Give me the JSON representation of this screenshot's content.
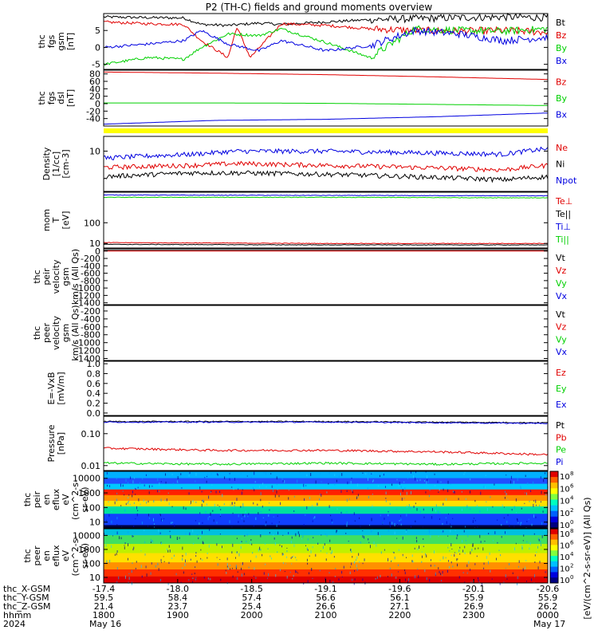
{
  "title": "P2 (TH-C) fields and ground moments overview",
  "time_axis": {
    "rows": [
      {
        "label": "thc_X-GSM",
        "values": [
          "-17.4",
          "-18.0",
          "-18.5",
          "-19.1",
          "-19.6",
          "-20.1",
          "-20.6"
        ]
      },
      {
        "label": "thc_Y-GSM",
        "values": [
          "59.5",
          "58.4",
          "57.4",
          "56.6",
          "56.1",
          "55.9",
          "55.9"
        ]
      },
      {
        "label": "thc_Z-GSM",
        "values": [
          "21.4",
          "23.7",
          "25.4",
          "26.6",
          "27.1",
          "26.9",
          "26.2"
        ]
      },
      {
        "label": "hhmm",
        "values": [
          "1800",
          "1900",
          "2000",
          "2100",
          "2200",
          "2300",
          "0000"
        ]
      }
    ],
    "date_row": {
      "label": "2024",
      "start": "May 16",
      "end": "May 17"
    }
  },
  "colorbar": {
    "label": "[eV/(cm^2-s-sr-eV)] (All Qs)",
    "ticks": [
      "10",
      "10",
      "10",
      "10",
      "10"
    ],
    "tick_exps": [
      "8",
      "6",
      "4",
      "2",
      "0"
    ]
  },
  "colors": {
    "black": "#000000",
    "red": "#e00000",
    "green": "#00d000",
    "blue": "#0000e0",
    "yellow": "#ffff00"
  },
  "chart_data": [
    {
      "type": "line",
      "panel": "fgs-gsm",
      "ylabel_lines": [
        "thc",
        "fgs",
        "gsm",
        "[nT]"
      ],
      "ytick_labels": [
        "5",
        "0",
        "-5"
      ],
      "ylim": [
        -6.5,
        10
      ],
      "legend": [
        "Bt",
        "Bz",
        "By",
        "Bx"
      ],
      "series": [
        {
          "name": "Bt",
          "x": [
            0,
            0.1,
            0.18,
            0.22,
            0.28,
            0.35,
            0.4,
            0.5,
            0.6,
            0.7,
            0.8,
            0.9,
            1
          ],
          "values": [
            9,
            8.8,
            8.7,
            6.8,
            6.5,
            7.2,
            6.8,
            7.5,
            8.2,
            8.5,
            8.8,
            9,
            8.8
          ]
        },
        {
          "name": "Bz",
          "x": [
            0,
            0.1,
            0.18,
            0.22,
            0.28,
            0.3,
            0.33,
            0.4,
            0.5,
            0.6,
            0.7,
            0.8,
            0.9,
            1
          ],
          "values": [
            7.5,
            7,
            6.8,
            2,
            -3,
            6,
            -3,
            7,
            6.5,
            5.5,
            5,
            4.8,
            5,
            4.5
          ]
        },
        {
          "name": "By",
          "x": [
            0,
            0.1,
            0.18,
            0.22,
            0.28,
            0.35,
            0.4,
            0.5,
            0.6,
            0.7,
            0.8,
            0.9,
            1
          ],
          "values": [
            -5,
            -3,
            -3.5,
            0,
            4,
            3.5,
            5.5,
            1.5,
            -3,
            5.5,
            5,
            4.8,
            5.5
          ]
        },
        {
          "name": "Bx",
          "x": [
            0,
            0.1,
            0.18,
            0.22,
            0.28,
            0.35,
            0.4,
            0.5,
            0.6,
            0.7,
            0.8,
            0.9,
            1
          ],
          "values": [
            0,
            1,
            2,
            5,
            1,
            -1,
            2,
            -1,
            0.5,
            5,
            4,
            2,
            3
          ]
        }
      ]
    },
    {
      "type": "line",
      "panel": "fgs-dsl",
      "ylabel_lines": [
        "thc",
        "fgs",
        "dsl",
        "[nT]"
      ],
      "ytick_labels": [
        "80",
        "60",
        "40",
        "20",
        "0",
        "-20",
        "-40"
      ],
      "ylim": [
        -60,
        90
      ],
      "legend": [
        "Bz",
        "By",
        "Bx"
      ],
      "series": [
        {
          "name": "Bz",
          "x": [
            0,
            0.25,
            0.5,
            0.75,
            1
          ],
          "values": [
            85,
            82,
            78,
            72,
            65
          ]
        },
        {
          "name": "By",
          "x": [
            0,
            0.25,
            0.5,
            0.75,
            1
          ],
          "values": [
            2,
            2,
            1,
            -2,
            -5
          ]
        },
        {
          "name": "Bx",
          "x": [
            0,
            0.25,
            0.5,
            0.75,
            1
          ],
          "values": [
            -55,
            -45,
            -42,
            -35,
            -25
          ]
        }
      ]
    },
    {
      "type": "line",
      "panel": "density",
      "log": true,
      "ylabel_lines": [
        "Density",
        "[1/cc]",
        "[cm-3]"
      ],
      "ytick_labels": [
        "10"
      ],
      "ylim": [
        0.5,
        30
      ],
      "legend": [
        "Ne",
        "Ni",
        "Npot"
      ],
      "series": [
        {
          "name": "Npot",
          "x": [
            0,
            0.2,
            0.3,
            0.5,
            0.7,
            0.9,
            1
          ],
          "values": [
            6,
            8,
            10,
            10,
            9,
            8,
            12
          ]
        },
        {
          "name": "Ne",
          "x": [
            0,
            0.2,
            0.3,
            0.5,
            0.7,
            0.9,
            1
          ],
          "values": [
            3,
            3.5,
            4,
            3.5,
            3,
            2.5,
            3.5
          ]
        },
        {
          "name": "Ni",
          "x": [
            0,
            0.2,
            0.3,
            0.5,
            0.7,
            0.9,
            1
          ],
          "values": [
            1.5,
            2,
            2,
            1.8,
            1.5,
            1.2,
            1.5
          ]
        }
      ]
    },
    {
      "type": "line",
      "panel": "temperature",
      "log": true,
      "ylabel_lines": [
        "mom",
        "T",
        "[eV]"
      ],
      "ytick_labels": [
        "100",
        "10"
      ],
      "ylim": [
        6,
        3000
      ],
      "legend": [
        "Te⊥",
        "Te||",
        "Ti⊥",
        "Ti||"
      ],
      "series": [
        {
          "name": "Ti⊥",
          "x": [
            0,
            0.5,
            1
          ],
          "values": [
            2200,
            2100,
            2000
          ]
        },
        {
          "name": "Ti||",
          "x": [
            0,
            0.5,
            1
          ],
          "values": [
            1700,
            1700,
            1600
          ]
        },
        {
          "name": "Te⊥",
          "x": [
            0,
            0.5,
            1
          ],
          "values": [
            11,
            10,
            10
          ]
        },
        {
          "name": "Te||",
          "x": [
            0,
            0.5,
            1
          ],
          "values": [
            9,
            8.5,
            8.5
          ]
        }
      ]
    },
    {
      "type": "line",
      "panel": "peir-velocity",
      "ylabel_lines": [
        "thc",
        "peir",
        "velocity",
        "gsm",
        "km/s (All Qs)"
      ],
      "ytick_labels": [
        "0",
        "-200",
        "-400",
        "-600",
        "-800",
        "-1000",
        "-1200",
        "-1400"
      ],
      "ylim": [
        -1450,
        60
      ],
      "legend": [
        "Vt",
        "Vz",
        "Vy",
        "Vx"
      ],
      "series": [
        {
          "name": "Vt",
          "x": [
            0,
            1
          ],
          "values": [
            20,
            20
          ]
        },
        {
          "name": "Vz",
          "x": [
            0,
            1
          ],
          "values": [
            0,
            0
          ]
        }
      ]
    },
    {
      "type": "line",
      "panel": "peer-velocity",
      "ylabel_lines": [
        "thc",
        "peer",
        "velocity",
        "gsm",
        "km/s (All Qs)"
      ],
      "ytick_labels": [
        "-200",
        "-400",
        "-600",
        "-800",
        "-1000",
        "-1200",
        "-1400"
      ],
      "ylim": [
        -1450,
        -60
      ],
      "legend": [
        "Vt",
        "Vz",
        "Vy",
        "Vx"
      ],
      "series": []
    },
    {
      "type": "line",
      "panel": "efield",
      "ylabel_lines": [
        "E=-VxB",
        "[mV/m]"
      ],
      "ytick_labels": [
        "1.0",
        "0.8",
        "0.6",
        "0.4",
        "0.2",
        "0.0"
      ],
      "ylim": [
        -0.05,
        1.05
      ],
      "legend": [
        "Ez",
        "Ey",
        "Ex"
      ],
      "series": []
    },
    {
      "type": "line",
      "panel": "pressure",
      "log": true,
      "ylabel_lines": [
        "Pressure",
        "[nPa]"
      ],
      "ytick_labels": [
        "0.10",
        "0.01"
      ],
      "ylim": [
        0.007,
        0.35
      ],
      "legend": [
        "Pt",
        "Pb",
        "Pe",
        "Pi"
      ],
      "series": [
        {
          "name": "Pt",
          "x": [
            0,
            0.5,
            1
          ],
          "values": [
            0.24,
            0.24,
            0.22
          ]
        },
        {
          "name": "Pi",
          "x": [
            0,
            0.5,
            1
          ],
          "values": [
            0.23,
            0.23,
            0.21
          ]
        },
        {
          "name": "Pb",
          "x": [
            0,
            0.25,
            0.5,
            0.75,
            1
          ],
          "values": [
            0.035,
            0.03,
            0.03,
            0.027,
            0.022
          ]
        },
        {
          "name": "Pe",
          "x": [
            0,
            0.25,
            0.5,
            0.75,
            1
          ],
          "values": [
            0.012,
            0.011,
            0.012,
            0.011,
            0.012
          ]
        }
      ]
    },
    {
      "type": "heatmap",
      "panel": "peir-eflux",
      "log": true,
      "ylabel_lines": [
        "thc",
        "peir",
        "en",
        "eflux",
        "eV",
        "(cm^2-s-",
        "sr-eV)"
      ],
      "ytick_labels": [
        "10000",
        "1000",
        "100",
        "10"
      ],
      "ylim": [
        4,
        30000
      ]
    },
    {
      "type": "heatmap",
      "panel": "peer-eflux",
      "log": true,
      "ylabel_lines": [
        "thc",
        "peer",
        "en",
        "eflux",
        "eV",
        "(cm^2-s-",
        "sr-eV)"
      ],
      "ytick_labels": [
        "10000",
        "1000",
        "100",
        "10"
      ],
      "ylim": [
        4,
        30000
      ]
    }
  ]
}
